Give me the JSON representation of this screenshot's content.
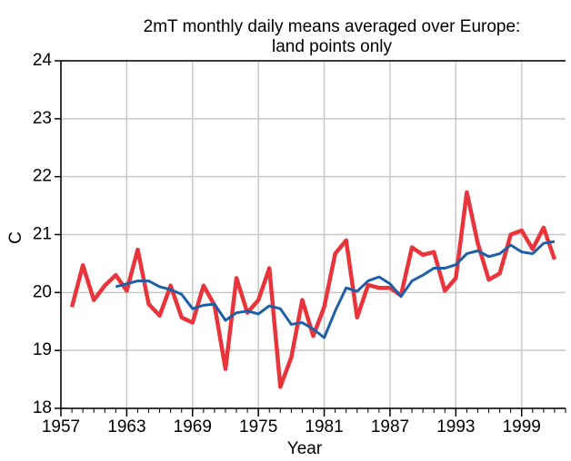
{
  "chart_data": {
    "type": "line",
    "title": [
      "2mT monthly daily means averaged over Europe:",
      "land points only"
    ],
    "x_label": "Year",
    "y_label": "C",
    "x": [
      1958,
      1959,
      1960,
      1961,
      1962,
      1963,
      1964,
      1965,
      1966,
      1967,
      1968,
      1969,
      1970,
      1971,
      1972,
      1973,
      1974,
      1975,
      1976,
      1977,
      1978,
      1979,
      1980,
      1981,
      1982,
      1983,
      1984,
      1985,
      1986,
      1987,
      1988,
      1989,
      1990,
      1991,
      1992,
      1993,
      1994,
      1995,
      1996,
      1997,
      1998,
      1999,
      2000,
      2001,
      2002
    ],
    "series": [
      {
        "color": "#e8343a",
        "values": [
          19.75,
          20.47,
          19.87,
          20.12,
          20.3,
          20.03,
          20.74,
          19.8,
          19.6,
          20.12,
          19.57,
          19.48,
          20.12,
          19.78,
          18.68,
          20.25,
          19.65,
          19.87,
          20.42,
          18.37,
          18.88,
          19.87,
          19.25,
          19.75,
          20.67,
          20.9,
          19.57,
          20.13,
          20.08,
          20.08,
          19.95,
          20.78,
          20.65,
          20.7,
          20.03,
          20.25,
          21.73,
          20.85,
          20.22,
          20.33,
          21.0,
          21.07,
          20.75,
          21.12,
          20.57
        ]
      },
      {
        "color": "#1f5fa8",
        "values": [
          null,
          null,
          null,
          null,
          20.1,
          20.15,
          20.2,
          20.2,
          20.1,
          20.05,
          19.97,
          19.72,
          19.78,
          19.8,
          19.52,
          19.65,
          19.68,
          19.63,
          19.77,
          19.72,
          19.45,
          19.48,
          19.37,
          19.22,
          19.68,
          20.08,
          20.02,
          20.2,
          20.27,
          20.15,
          19.93,
          20.2,
          20.3,
          20.42,
          20.42,
          20.48,
          20.67,
          20.72,
          20.62,
          20.67,
          20.82,
          20.7,
          20.67,
          20.85,
          20.88
        ]
      }
    ],
    "xlim": [
      1957,
      2003
    ],
    "xticks": [
      1957,
      1963,
      1969,
      1975,
      1981,
      1987,
      1993,
      1999
    ],
    "ylim": [
      18,
      24
    ],
    "yticks": [
      18,
      19,
      20,
      21,
      22,
      23,
      24
    ],
    "grid": true
  }
}
